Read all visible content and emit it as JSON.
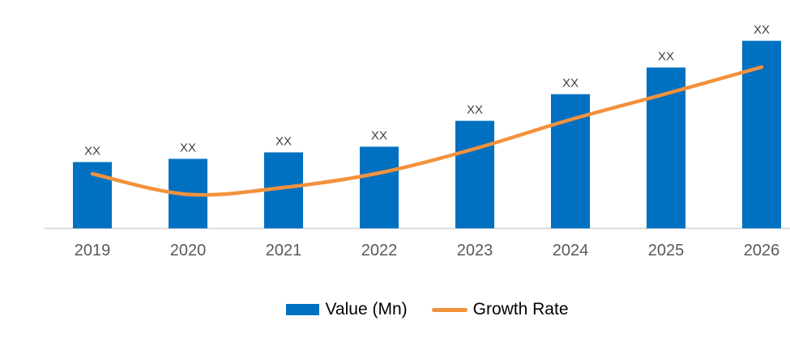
{
  "chart_data": {
    "type": "bar",
    "combo": "bar + smoothed line overlay",
    "title": "",
    "categories": [
      "2019",
      "2020",
      "2021",
      "2022",
      "2023",
      "2024",
      "2025",
      "2026"
    ],
    "series": [
      {
        "name": "Value (Mn)",
        "type": "bar",
        "color": "#0070C0",
        "value_labels": [
          "XX",
          "XX",
          "XX",
          "XX",
          "XX",
          "XX",
          "XX",
          "XX"
        ],
        "values": [
          82,
          86,
          94,
          101,
          133,
          166,
          199,
          232
        ]
      },
      {
        "name": "Growth Rate",
        "type": "line",
        "color": "#F2923C",
        "values": [
          67.5,
          42,
          50.5,
          68.5,
          98.5,
          134.5,
          166.5,
          199.5
        ]
      }
    ],
    "value_note": "Numeric values are masked as 'XX' placeholders in the source image; series values here are pixel-proportional relative magnitudes above the baseline.",
    "xlabel": "",
    "ylabel": "",
    "axes": {
      "y_axis": "hidden",
      "gridlines": false,
      "x_axis_line_color": "#D2D2D2"
    },
    "legend": {
      "position": "bottom-center"
    }
  },
  "styles": {
    "bar_label_color": "#3F3F3F",
    "tick_label_color": "#595959",
    "legend_text_color": "#000000",
    "background": "#FFFFFF"
  }
}
